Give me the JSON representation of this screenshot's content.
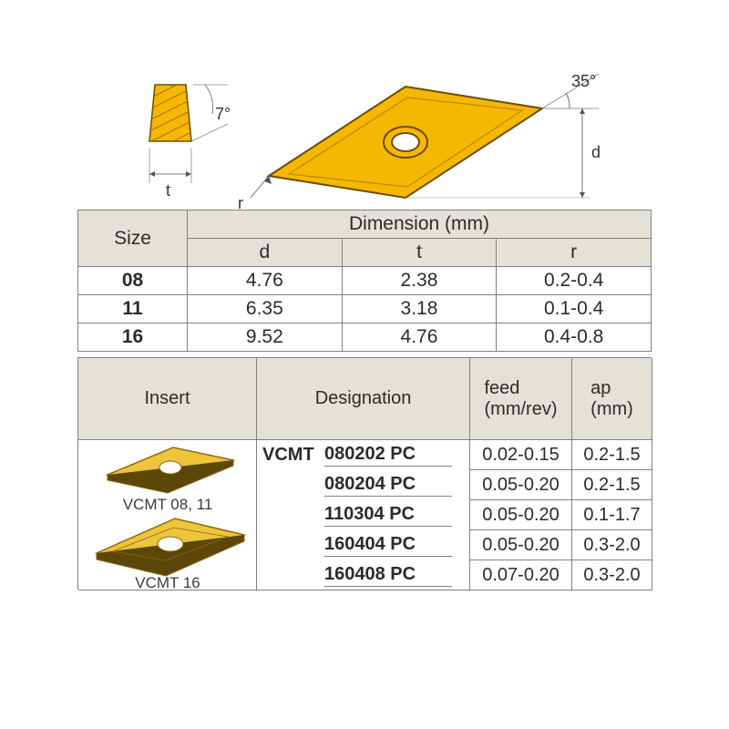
{
  "diagram": {
    "angle_top": "35°",
    "angle_side": "7°",
    "dim_d": "d",
    "dim_t": "t",
    "dim_r": "r",
    "fill": "#f5b800",
    "stroke": "#6a4d00",
    "hatch": "#c08000"
  },
  "table1": {
    "header_size": "Size",
    "header_dim": "Dimension (mm)",
    "sub_d": "d",
    "sub_t": "t",
    "sub_r": "r",
    "rows": [
      {
        "size": "08",
        "d": "4.76",
        "t": "2.38",
        "r": "0.2-0.4"
      },
      {
        "size": "11",
        "d": "6.35",
        "t": "3.18",
        "r": "0.1-0.4"
      },
      {
        "size": "16",
        "d": "9.52",
        "t": "4.76",
        "r": "0.4-0.8"
      }
    ]
  },
  "table2": {
    "h_insert": "Insert",
    "h_desig": "Designation",
    "h_feed_l1": "feed",
    "h_feed_l2": "(mm/rev)",
    "h_ap_l1": "ap",
    "h_ap_l2": "(mm)",
    "family": "VCMT",
    "rows": [
      {
        "code": "080202 PC",
        "feed": "0.02-0.15",
        "ap": "0.2-1.5"
      },
      {
        "code": "080204 PC",
        "feed": "0.05-0.20",
        "ap": "0.2-1.5"
      },
      {
        "code": "110304 PC",
        "feed": "0.05-0.20",
        "ap": "0.1-1.7"
      },
      {
        "code": "160404 PC",
        "feed": "0.05-0.20",
        "ap": "0.3-2.0"
      },
      {
        "code": "160408 PC",
        "feed": "0.07-0.20",
        "ap": "0.3-2.0"
      }
    ],
    "insert_illus": {
      "label_small": "VCMT 08, 11",
      "label_big": "VCMT 16",
      "fill": "#edc43a",
      "edge": "#8a6b12",
      "dark_edge": "#5c4708"
    }
  },
  "layout": {
    "t1_colw": [
      120,
      170,
      170,
      170
    ],
    "t2_colw": [
      196,
      234,
      112,
      88
    ],
    "t2_hdr_h": 90,
    "t2_row_h": 33,
    "bg_header": "#e4e1d9"
  }
}
